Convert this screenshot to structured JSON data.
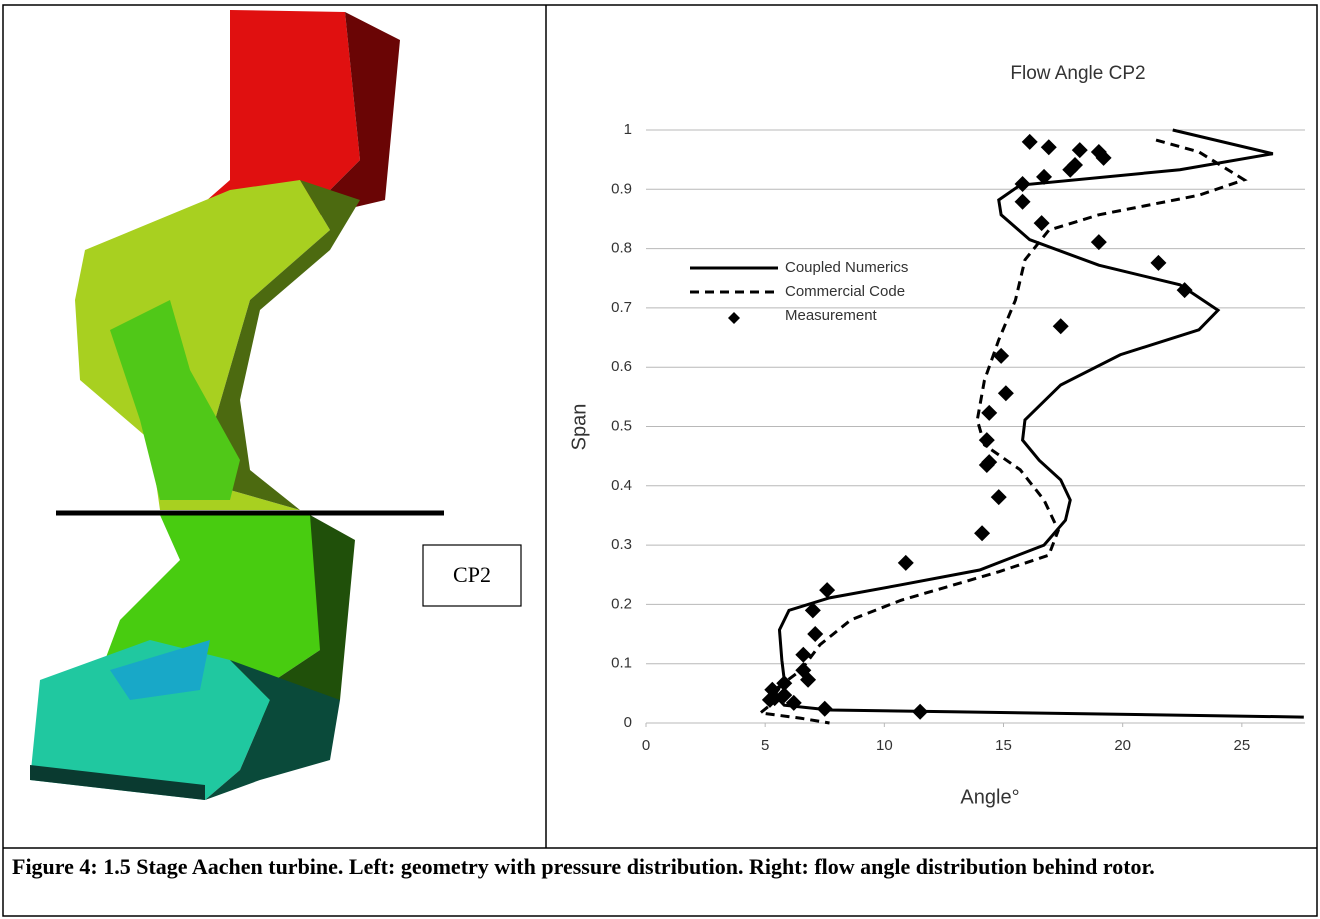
{
  "figure": {
    "label": "CP2",
    "caption": "Figure 4: 1.5 Stage Aachen turbine. Left: geometry with pressure distribution. Right: flow angle distribution behind rotor."
  },
  "chart_data": {
    "type": "line",
    "title": "Flow Angle CP2",
    "x_label": "Angle°",
    "y_label": "Span",
    "xlim": [
      0,
      27.65
    ],
    "xticks": [
      0,
      5,
      10,
      15,
      20,
      25
    ],
    "ylim": [
      0,
      1
    ],
    "yticks": [
      0,
      0.1,
      0.2,
      0.3,
      0.4,
      0.5,
      0.6,
      0.7,
      0.8,
      0.9,
      1
    ],
    "grid": true,
    "legend": "left",
    "series": [
      {
        "name": "Coupled Numerics",
        "type": "line",
        "style": "solid",
        "color": "#000000",
        "x": [
          22.1,
          26.3,
          22.4,
          15.7,
          14.8,
          14.9,
          16.1,
          19.0,
          22.4,
          24.0,
          23.2,
          19.9,
          17.4,
          15.9,
          15.8,
          16.5,
          17.4,
          17.8,
          17.6,
          16.7,
          14.0,
          10.7,
          7.7,
          6.0,
          5.6,
          5.7,
          5.8,
          5.4,
          5.8,
          7.7,
          12.8,
          27.6
        ],
        "y": [
          1.0,
          0.96,
          0.933,
          0.907,
          0.882,
          0.857,
          0.815,
          0.772,
          0.739,
          0.696,
          0.663,
          0.621,
          0.57,
          0.511,
          0.477,
          0.443,
          0.41,
          0.376,
          0.342,
          0.3,
          0.258,
          0.233,
          0.211,
          0.19,
          0.157,
          0.106,
          0.073,
          0.047,
          0.03,
          0.022,
          0.019,
          0.01
        ]
      },
      {
        "name": "Commercial Code",
        "type": "line",
        "style": "dashed",
        "color": "#000000",
        "x": [
          21.4,
          23.2,
          25.1,
          23.2,
          19.0,
          16.9,
          15.9,
          15.5,
          14.8,
          14.2,
          13.9,
          14.2,
          15.7,
          16.7,
          17.3,
          16.9,
          14.8,
          10.7,
          8.6,
          7.3,
          6.5,
          5.4,
          5.2,
          4.8,
          6.5,
          7.7
        ],
        "y": [
          0.983,
          0.963,
          0.916,
          0.89,
          0.857,
          0.831,
          0.781,
          0.713,
          0.646,
          0.578,
          0.511,
          0.469,
          0.427,
          0.376,
          0.325,
          0.283,
          0.255,
          0.207,
          0.174,
          0.132,
          0.089,
          0.056,
          0.03,
          0.017,
          0.008,
          0
        ]
      },
      {
        "name": "Measurement",
        "type": "scatter",
        "marker": "diamond",
        "color": "#000000",
        "x": [
          16.1,
          16.9,
          18.2,
          19.0,
          19.2,
          18.0,
          17.8,
          16.7,
          15.8,
          15.8,
          16.6,
          19.0,
          21.5,
          22.6,
          17.4,
          14.9,
          15.1,
          14.4,
          14.3,
          14.4,
          14.3,
          14.8,
          14.1,
          10.9,
          7.6,
          7.0,
          7.1,
          6.6,
          6.6,
          6.8,
          5.8,
          5.3,
          5.8,
          5.4,
          5.2,
          6.2,
          7.5,
          11.5
        ],
        "y": [
          0.98,
          0.971,
          0.966,
          0.963,
          0.953,
          0.941,
          0.933,
          0.921,
          0.909,
          0.879,
          0.843,
          0.811,
          0.776,
          0.73,
          0.669,
          0.619,
          0.556,
          0.523,
          0.477,
          0.44,
          0.435,
          0.381,
          0.32,
          0.27,
          0.224,
          0.19,
          0.15,
          0.115,
          0.089,
          0.073,
          0.067,
          0.056,
          0.047,
          0.042,
          0.039,
          0.034,
          0.024,
          0.019
        ]
      }
    ]
  }
}
